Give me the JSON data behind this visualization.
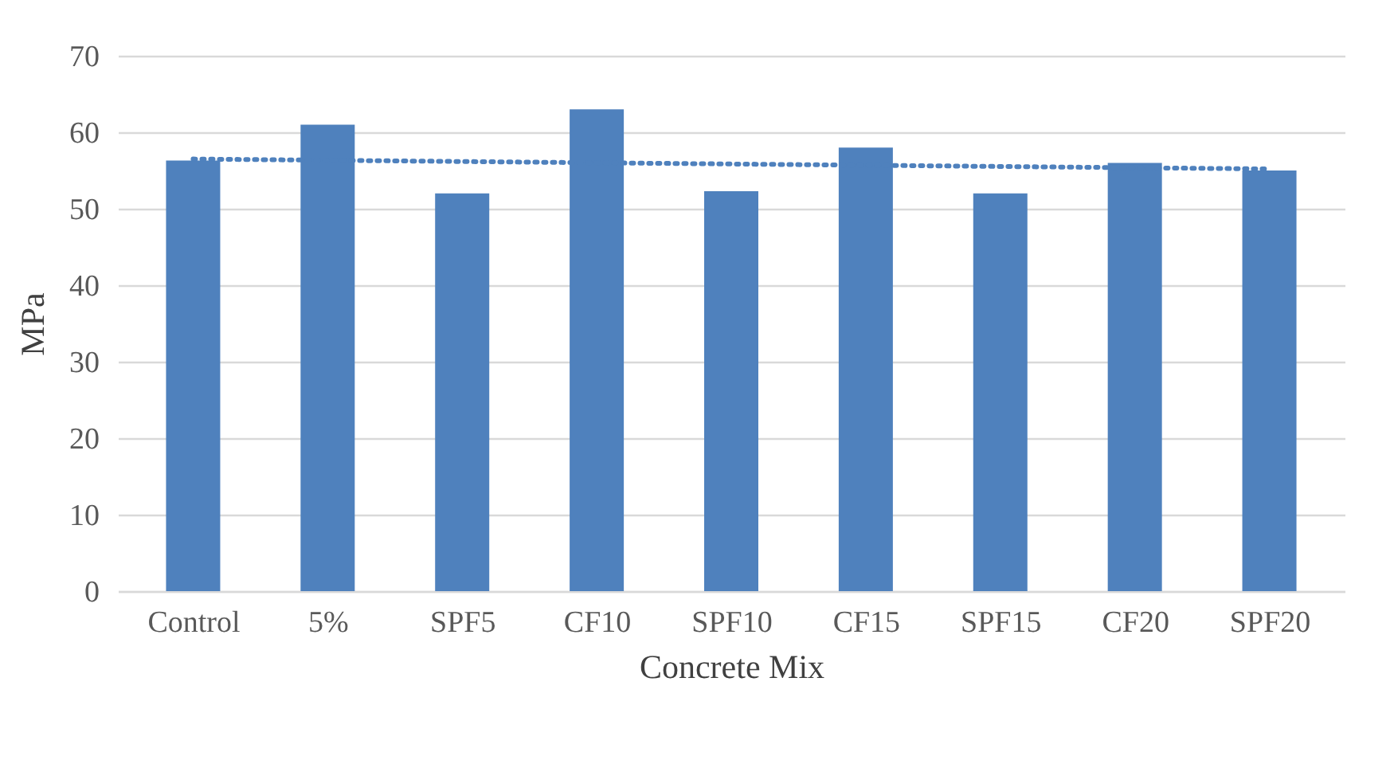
{
  "chart_data": {
    "type": "bar",
    "xlabel": "Concrete Mix",
    "ylabel": "MPa",
    "categories": [
      "Control",
      "5%",
      "SPF5",
      "CF10",
      "SPF10",
      "CF15",
      "SPF15",
      "CF20",
      "SPF20"
    ],
    "series": [
      {
        "color": "#4f81bd",
        "values": [
          56.3,
          61,
          52,
          63,
          52.3,
          58,
          52,
          56,
          55
        ]
      },
      {
        "type": "line",
        "color": "#4f81bd",
        "line_style": "dotted",
        "x": [
          "Control",
          "SPF20"
        ],
        "values": [
          56.5,
          55.2
        ]
      }
    ],
    "ylim": [
      0,
      70
    ],
    "yticks": [
      0,
      10,
      20,
      30,
      40,
      50,
      60,
      70
    ],
    "grid": "y"
  }
}
